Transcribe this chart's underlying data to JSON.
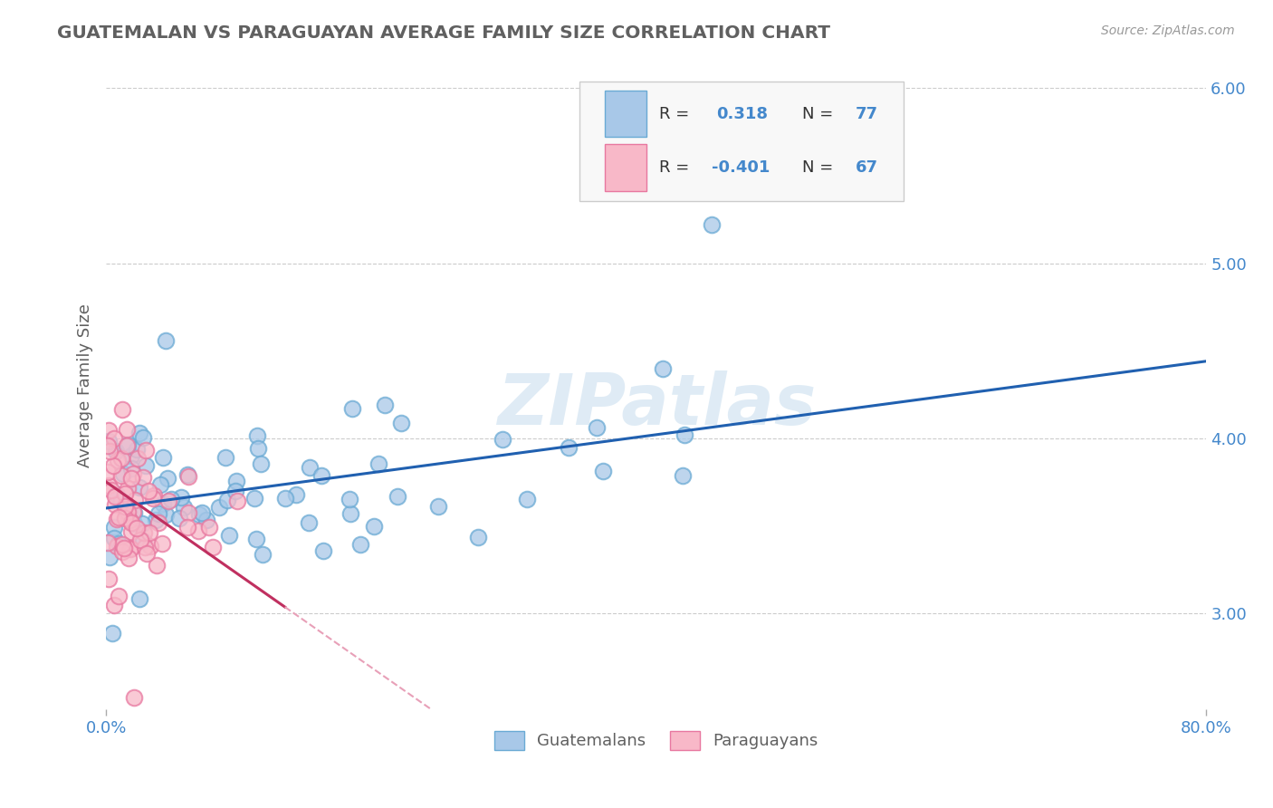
{
  "title": "GUATEMALAN VS PARAGUAYAN AVERAGE FAMILY SIZE CORRELATION CHART",
  "source_text": "Source: ZipAtlas.com",
  "ylabel": "Average Family Size",
  "xlim": [
    0.0,
    0.8
  ],
  "ylim": [
    2.45,
    6.15
  ],
  "yticks": [
    3.0,
    4.0,
    5.0,
    6.0
  ],
  "xticks": [
    0.0,
    0.8
  ],
  "xticklabels": [
    "0.0%",
    "80.0%"
  ],
  "blue_color": "#a8c8e8",
  "blue_edge": "#6aaad4",
  "pink_color": "#f8b8c8",
  "pink_edge": "#e878a0",
  "blue_line_color": "#2060b0",
  "pink_line_solid_color": "#c03060",
  "pink_line_dash_color": "#e8a0b8",
  "watermark": "ZIPatlas",
  "background_color": "#ffffff",
  "grid_color": "#cccccc",
  "title_color": "#606060",
  "axis_color": "#4488cc",
  "label_color": "#606060",
  "r_value_blue": 0.318,
  "n_blue": 77,
  "r_value_pink": -0.401,
  "n_pink": 67,
  "blue_seed": 42,
  "pink_seed": 7
}
